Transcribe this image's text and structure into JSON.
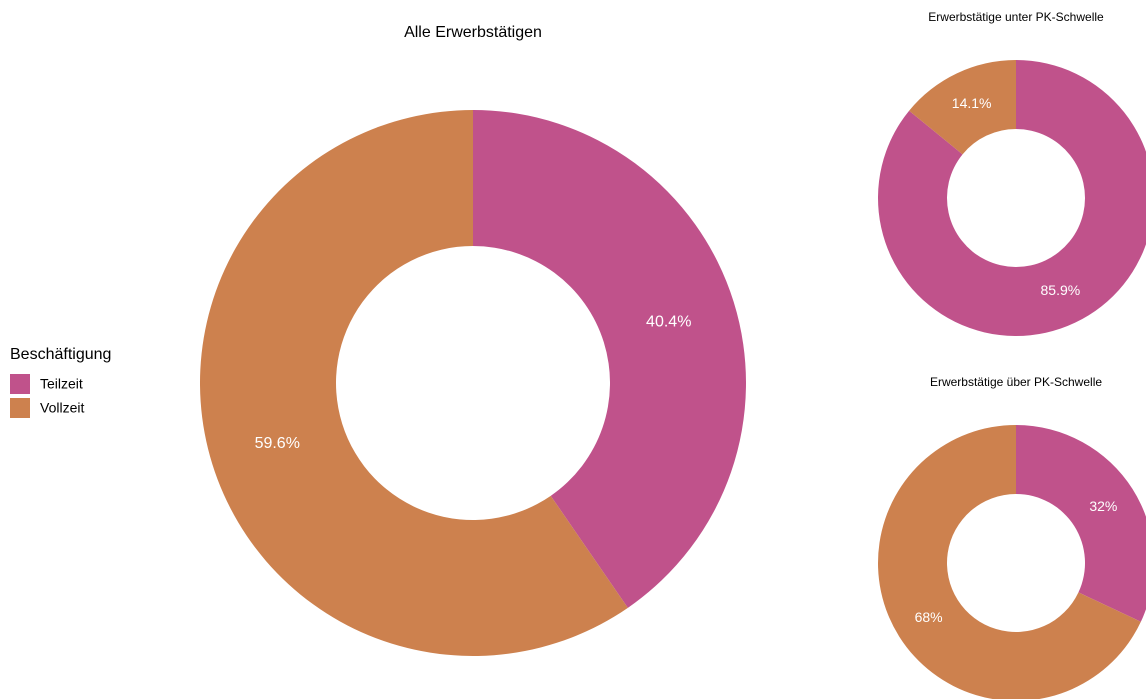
{
  "chart_data": [
    {
      "type": "pie",
      "title": "Alle Erwerbstätigen",
      "legend_title": "Beschäftigung",
      "categories": [
        "Teilzeit",
        "Vollzeit"
      ],
      "values": [
        40.4,
        59.6
      ],
      "value_labels": [
        "40.4%",
        "59.6%"
      ],
      "colors": [
        "#c0528b",
        "#cd814e"
      ]
    },
    {
      "type": "pie",
      "title": "Erwerbstätige unter PK-Schwelle",
      "categories": [
        "Teilzeit",
        "Vollzeit"
      ],
      "values": [
        85.9,
        14.1
      ],
      "value_labels": [
        "85.9%",
        "14.1%"
      ],
      "colors": [
        "#c0528b",
        "#cd814e"
      ]
    },
    {
      "type": "pie",
      "title": "Erwerbstätige über PK-Schwelle",
      "categories": [
        "Teilzeit",
        "Vollzeit"
      ],
      "values": [
        32,
        68
      ],
      "value_labels": [
        "32%",
        "68%"
      ],
      "colors": [
        "#c0528b",
        "#cd814e"
      ]
    }
  ]
}
